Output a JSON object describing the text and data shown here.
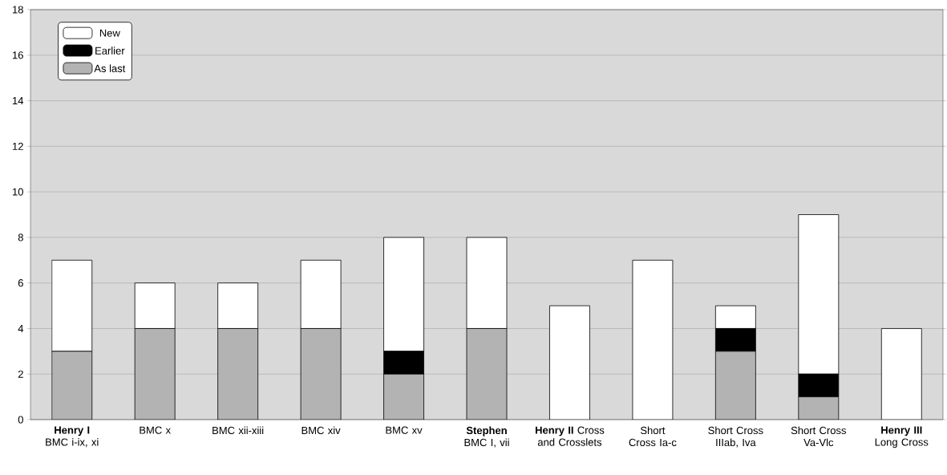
{
  "chart_data": {
    "type": "bar",
    "stacked": true,
    "categories": [
      "**Henry I** BMC i-ix, xi",
      "BMC x",
      "BMC xii-xiii",
      "BMC xiv",
      "BMC xv",
      "**Stephen** BMC I, vii",
      "**Henry II** Cross and Crosslets",
      "Short Cross Ia-c",
      "Short Cross IIIab, Iva",
      "Short Cross Va-Vlc",
      "**Henry III** Long Cross"
    ],
    "series": [
      {
        "name": "As last",
        "color": "#b3b3b3",
        "values": [
          3,
          4,
          4,
          4,
          2,
          4,
          0,
          0,
          3,
          1,
          0
        ]
      },
      {
        "name": "Earlier",
        "color": "#000000",
        "values": [
          0,
          0,
          0,
          0,
          1,
          0,
          0,
          0,
          1,
          1,
          0
        ]
      },
      {
        "name": "New",
        "color": "#ffffff",
        "values": [
          4,
          2,
          2,
          3,
          5,
          4,
          5,
          7,
          1,
          7,
          4
        ]
      }
    ],
    "ylim": [
      0,
      18
    ],
    "yticks": [
      0,
      2,
      4,
      6,
      8,
      10,
      12,
      14,
      16,
      18
    ],
    "grid": "y",
    "legend": "top left"
  }
}
